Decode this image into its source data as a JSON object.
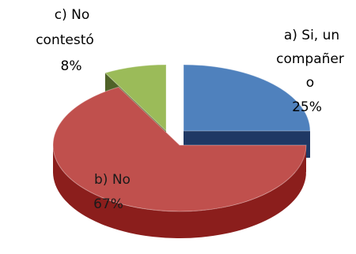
{
  "chart_data": {
    "type": "pie",
    "style": "3d-exploded",
    "categories": [
      "a)   Si, un compañero",
      "b)   No",
      "c) No contestó"
    ],
    "values": [
      25,
      67,
      8
    ],
    "labels": [
      {
        "lines": [
          "a)    Si, un",
          "compañer",
          "o"
        ],
        "percent": "25%"
      },
      {
        "lines": [
          "b)   No"
        ],
        "percent": "67%"
      },
      {
        "lines": [
          "c) No",
          "contestó"
        ],
        "percent": "8%"
      }
    ],
    "colors": [
      "#4F81BD",
      "#C0504D",
      "#9BBB59"
    ],
    "side_colors": [
      "#1F3864",
      "#8B1E1C",
      "#4F6228"
    ],
    "title": "",
    "legend": "none"
  }
}
